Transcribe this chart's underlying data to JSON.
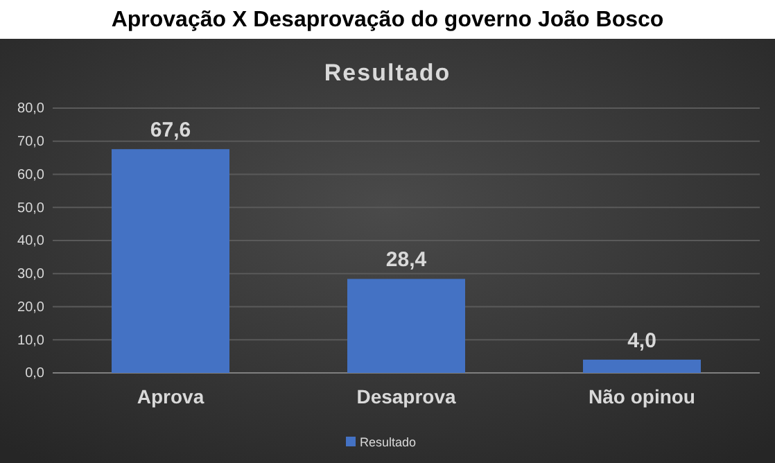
{
  "chart_data": {
    "type": "bar",
    "title": "Aprovação X Desaprovação do governo João Bosco",
    "subtitle": "Resultado",
    "categories": [
      "Aprova",
      "Desaprova",
      "Não opinou"
    ],
    "series": [
      {
        "name": "Resultado",
        "color": "#4472c4",
        "values": [
          67.6,
          28.4,
          4.0
        ],
        "value_labels": [
          "67,6",
          "28,4",
          "4,0"
        ]
      }
    ],
    "ylim": [
      0,
      80
    ],
    "yticks": [
      {
        "value": 0,
        "label": "0,0"
      },
      {
        "value": 10,
        "label": "10,0"
      },
      {
        "value": 20,
        "label": "20,0"
      },
      {
        "value": 30,
        "label": "30,0"
      },
      {
        "value": 40,
        "label": "40,0"
      },
      {
        "value": 50,
        "label": "50,0"
      },
      {
        "value": 60,
        "label": "60,0"
      },
      {
        "value": 70,
        "label": "70,0"
      },
      {
        "value": 80,
        "label": "80,0"
      }
    ],
    "grid": "y",
    "legend": "bottom"
  }
}
